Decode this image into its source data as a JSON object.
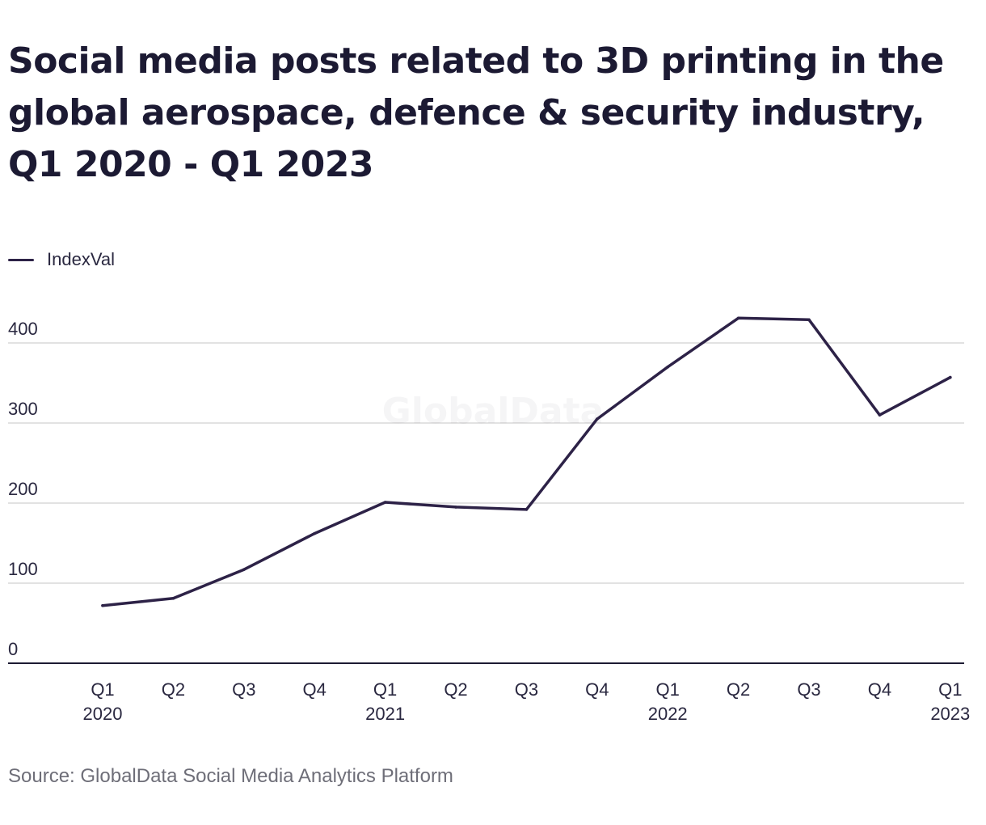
{
  "title": "Social media posts related to 3D printing in the global aerospace, defence & security industry, Q1 2020 - Q1 2023",
  "watermark": "GlobalData",
  "source": "Source: GlobalData Social Media Analytics Platform",
  "colors": {
    "line": "#2d2247",
    "grid": "#d9d9d9",
    "axis": "#1c1a33",
    "text": "#2a2840"
  },
  "chart_data": {
    "type": "line",
    "title": "Social media posts related to 3D printing in the global aerospace, defence & security industry, Q1 2020 - Q1 2023",
    "xlabel": "",
    "ylabel": "",
    "ylim": [
      0,
      430
    ],
    "yticks": [
      0,
      100,
      200,
      300,
      400
    ],
    "grid": true,
    "legend_position": "top-left",
    "categories": [
      [
        "Q1",
        "2020"
      ],
      [
        "Q2",
        ""
      ],
      [
        "Q3",
        ""
      ],
      [
        "Q4",
        ""
      ],
      [
        "Q1",
        "2021"
      ],
      [
        "Q2",
        ""
      ],
      [
        "Q3",
        ""
      ],
      [
        "Q4",
        ""
      ],
      [
        "Q1",
        "2022"
      ],
      [
        "Q2",
        ""
      ],
      [
        "Q3",
        ""
      ],
      [
        "Q4",
        ""
      ],
      [
        "Q1",
        "2023"
      ]
    ],
    "series": [
      {
        "name": "IndexVal",
        "values": [
          72,
          81,
          117,
          162,
          201,
          195,
          192,
          305,
          370,
          431,
          429,
          310,
          357
        ]
      }
    ]
  }
}
